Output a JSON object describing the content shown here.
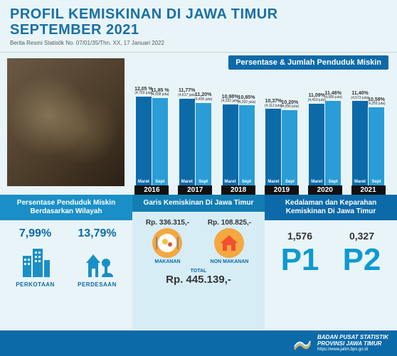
{
  "header": {
    "title_line1": "PROFIL KEMISKINAN DI JAWA TIMUR",
    "title_line2": "SEPTEMBER 2021",
    "press_release": "Berita Resmi Statistik No. 07/01/35/Thn. XX, 17 Januari 2022"
  },
  "chart": {
    "title": "Persentase & Jumlah Penduduk Miskin",
    "max_value": 12.5,
    "bar_colors": {
      "maret": "#0d6aa8",
      "sept": "#2a9dd6"
    },
    "period_labels": {
      "maret": "Maret",
      "sept": "Sept"
    },
    "year_label_bg": "#111111",
    "years": [
      {
        "year": "2016",
        "maret": {
          "pct": "12,05 %",
          "sub": "(4,703 juta)",
          "value": 12.05
        },
        "sept": {
          "pct": "11,85 %",
          "sub": "(4,638 juta)",
          "value": 11.85
        }
      },
      {
        "year": "2017",
        "maret": {
          "pct": "11,77%",
          "sub": "(4,617 juta)",
          "value": 11.77
        },
        "sept": {
          "pct": "11,20%",
          "sub": "(4,405 juta)",
          "value": 11.2
        }
      },
      {
        "year": "2018",
        "maret": {
          "pct": "10,98%",
          "sub": "(4,332 juta)",
          "value": 10.98
        },
        "sept": {
          "pct": "10,85%",
          "sub": "(4,292 juta)",
          "value": 10.85
        }
      },
      {
        "year": "2019",
        "maret": {
          "pct": "10,37%",
          "sub": "(4,112 juta)",
          "value": 10.37
        },
        "sept": {
          "pct": "10,20%",
          "sub": "(4,056 juta)",
          "value": 10.2
        }
      },
      {
        "year": "2020",
        "maret": {
          "pct": "11,09%",
          "sub": "(4,419 juta)",
          "value": 11.09
        },
        "sept": {
          "pct": "11,46%",
          "sub": "(4,586 juta)",
          "value": 11.46
        }
      },
      {
        "year": "2021",
        "maret": {
          "pct": "11,40%",
          "sub": "(4,573 juta)",
          "value": 11.4
        },
        "sept": {
          "pct": "10,59%",
          "sub": "(4,259 juta)",
          "value": 10.59
        }
      }
    ]
  },
  "col1": {
    "header": "Persentase Penduduk Miskin Berdasarkan Wilayah",
    "perkotaan": {
      "pct": "7,99%",
      "label": "PERKOTAAN",
      "icon_color": "#1a8fc7"
    },
    "perdesaan": {
      "pct": "13,79%",
      "label": "PERDESAAN",
      "icon_color": "#1a8fc7"
    }
  },
  "col2": {
    "header": "Garis Kemiskinan Di Jawa Timur",
    "makanan": {
      "val": "Rp. 336.315,-",
      "label": "MAKANAN",
      "icon_bg": "#f4a840"
    },
    "nonmakanan": {
      "val": "Rp. 108.825,-",
      "label": "NON MAKANAN",
      "icon_bg": "#f08030"
    },
    "total_label": "TOTAL",
    "total_value": "Rp. 445.139,-"
  },
  "col3": {
    "header": "Kedalaman dan Keparahan Kemiskinan Di Jawa Timur",
    "p1": {
      "val": "1,576",
      "big": "P1"
    },
    "p2": {
      "val": "0,327",
      "big": "P2"
    },
    "big_color": "#0d9acf"
  },
  "footer": {
    "line1": "BADAN PUSAT STATISTIK",
    "line2": "PROVINSI JAWA TIMUR",
    "url": "https://www.jatim.bps.go.id",
    "bg": "#0d6aa8"
  }
}
